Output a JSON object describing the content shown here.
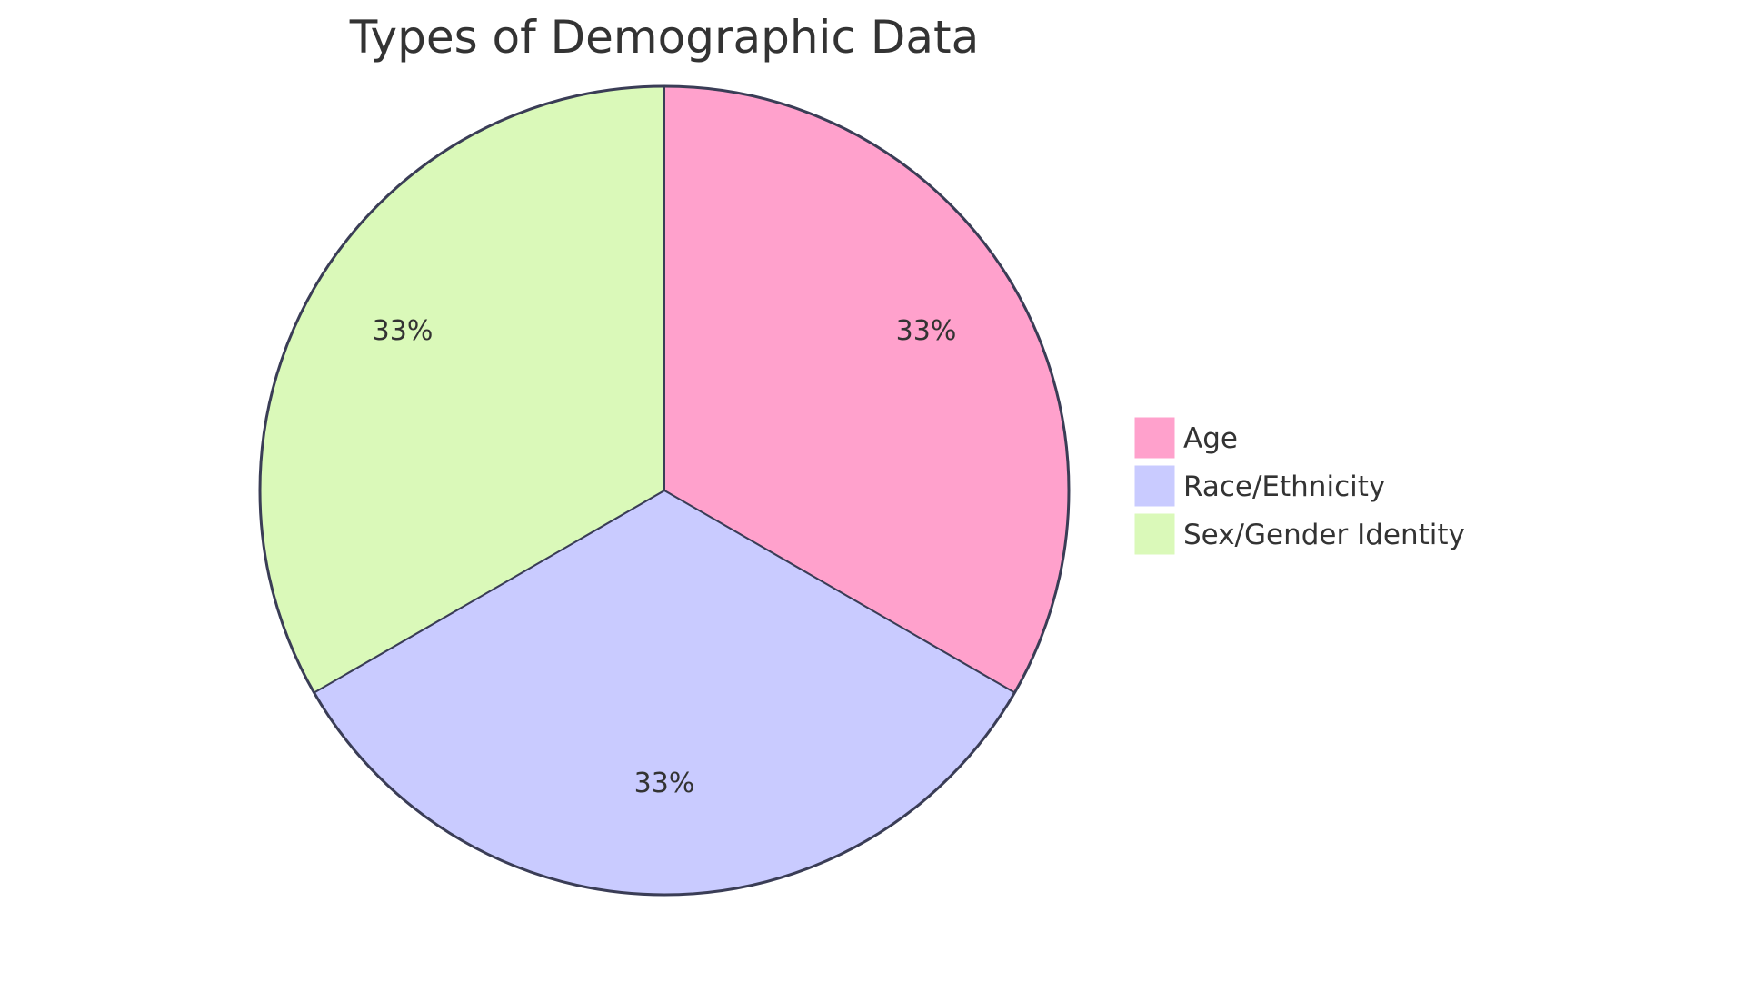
{
  "chart_data": {
    "type": "pie",
    "title": "Types of Demographic Data",
    "categories": [
      "Age",
      "Race/Ethnicity",
      "Sex/Gender Identity"
    ],
    "values": [
      33.33,
      33.33,
      33.33
    ],
    "labels": [
      "33%",
      "33%",
      "33%"
    ],
    "colors": [
      "#ffa1cc",
      "#c9cbff",
      "#daf9b9"
    ],
    "stroke_color": "#3a3d56",
    "legend_position": "right",
    "start_angle_deg": 0,
    "direction": "clockwise"
  },
  "title": "Types of Demographic Data",
  "legend": {
    "items": [
      {
        "label": "Age",
        "color": "#ffa1cc"
      },
      {
        "label": "Race/Ethnicity",
        "color": "#c9cbff"
      },
      {
        "label": "Sex/Gender Identity",
        "color": "#daf9b9"
      }
    ]
  },
  "slices": [
    {
      "label": "33%"
    },
    {
      "label": "33%"
    },
    {
      "label": "33%"
    }
  ]
}
